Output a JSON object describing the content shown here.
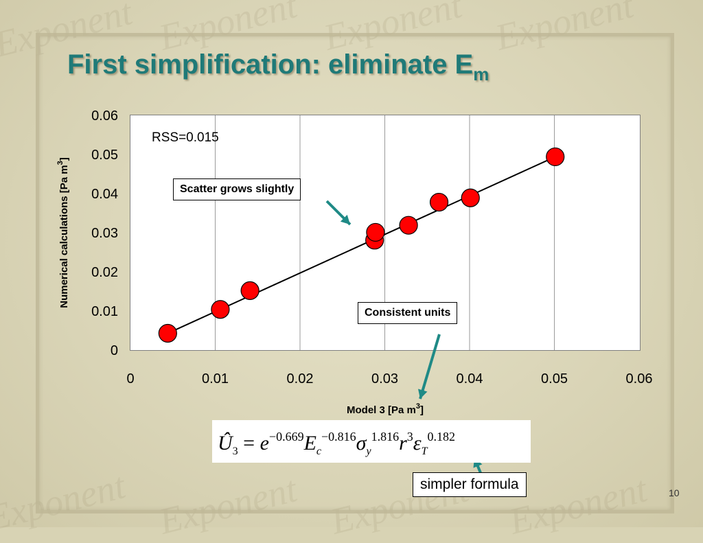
{
  "slide": {
    "title": "First simplification: eliminate E",
    "title_subscript": "m",
    "page_number": "10",
    "watermark_text": "Exponent"
  },
  "annotations": {
    "rss": "RSS=0.015",
    "scatter": "Scatter grows slightly",
    "units": "Consistent units",
    "simpler": "simpler formula"
  },
  "formula": {
    "lhs": "Û",
    "lhs_sub": "3",
    "equals": " = ",
    "base_e": "e",
    "exp_e": "−0.669",
    "E": "E",
    "E_sub": "c",
    "E_exp": "−0.816",
    "sigma": "σ",
    "sigma_sub": "y",
    "sigma_exp": "1.816",
    "r": "r",
    "r_exp": "3",
    "eps": "ε",
    "eps_sub": "T",
    "eps_exp": "0.182"
  },
  "colors": {
    "title": "#1f7a78",
    "marker": "#ff0000",
    "arrow": "#1f8a86"
  },
  "chart_data": {
    "type": "scatter",
    "xlabel": "Model 3 [Pa m",
    "xlabel_sup": "3",
    "xlabel_end": "]",
    "ylabel": "Numerical calculations [Pa m",
    "ylabel_sup": "3",
    "ylabel_end": "]",
    "xlim": [
      0,
      0.06
    ],
    "ylim": [
      0,
      0.06
    ],
    "xticks": [
      "0",
      "0.01",
      "0.02",
      "0.03",
      "0.04",
      "0.05",
      "0.06"
    ],
    "yticks": [
      "0",
      "0.01",
      "0.02",
      "0.03",
      "0.04",
      "0.05",
      "0.06"
    ],
    "grid": "vertical",
    "points": [
      {
        "x": 0.0044,
        "y": 0.0043
      },
      {
        "x": 0.0106,
        "y": 0.0104
      },
      {
        "x": 0.0141,
        "y": 0.0152
      },
      {
        "x": 0.0288,
        "y": 0.0281
      },
      {
        "x": 0.0289,
        "y": 0.0301
      },
      {
        "x": 0.0328,
        "y": 0.0319
      },
      {
        "x": 0.0364,
        "y": 0.0378
      },
      {
        "x": 0.0401,
        "y": 0.0389
      },
      {
        "x": 0.0501,
        "y": 0.0494
      }
    ],
    "fit_line": {
      "x": [
        0.0044,
        0.0501
      ],
      "y": [
        0.0043,
        0.0494
      ]
    }
  }
}
